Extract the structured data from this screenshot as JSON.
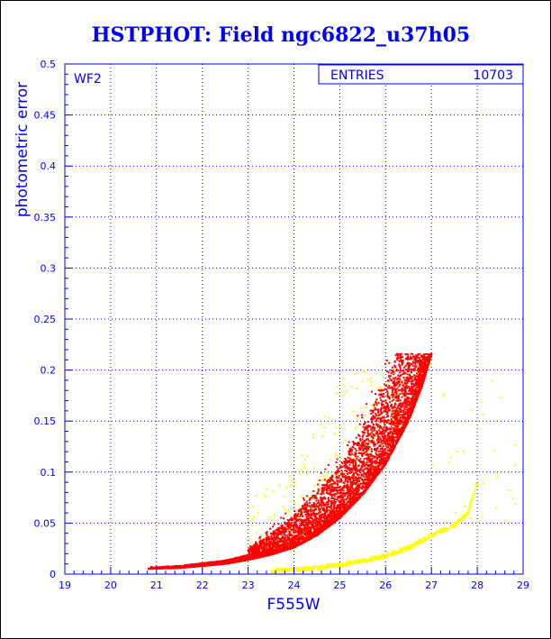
{
  "chart_data": {
    "type": "scatter",
    "title": "HSTPHOT: Field ngc6822_u37h05",
    "xlabel": "F555W",
    "ylabel": "photometric error",
    "panel_label": "WF2",
    "stats_label": "ENTRIES",
    "stats_value": "10703",
    "xlim": [
      19,
      29
    ],
    "ylim": [
      0,
      0.5
    ],
    "xticks": [
      "19",
      "20",
      "21",
      "22",
      "23",
      "24",
      "25",
      "26",
      "27",
      "28",
      "29"
    ],
    "yticks": [
      "0",
      "0.05",
      "0.1",
      "0.15",
      "0.2",
      "0.25",
      "0.3",
      "0.35",
      "0.4",
      "0.45",
      "0.5"
    ],
    "grid": true,
    "series": [
      {
        "color": "#ff0000",
        "description_points": [
          [
            20.8,
            0.005
          ],
          [
            21.5,
            0.006
          ],
          [
            22.0,
            0.008
          ],
          [
            22.5,
            0.01
          ],
          [
            23.0,
            0.014
          ],
          [
            23.5,
            0.019
          ],
          [
            24.0,
            0.026
          ],
          [
            24.5,
            0.038
          ],
          [
            25.0,
            0.055
          ],
          [
            25.5,
            0.078
          ],
          [
            26.0,
            0.108
          ],
          [
            26.5,
            0.15
          ],
          [
            26.8,
            0.185
          ],
          [
            27.0,
            0.216
          ]
        ],
        "upper_envelope": [
          [
            23.0,
            0.025
          ],
          [
            23.5,
            0.04
          ],
          [
            24.0,
            0.058
          ],
          [
            24.5,
            0.082
          ],
          [
            25.0,
            0.105
          ],
          [
            25.5,
            0.145
          ],
          [
            26.0,
            0.19
          ],
          [
            26.2,
            0.216
          ]
        ],
        "cap": 0.216
      },
      {
        "color": "#ffff00",
        "description_points": [
          [
            23.5,
            0.003
          ],
          [
            24.5,
            0.006
          ],
          [
            25.0,
            0.009
          ],
          [
            25.5,
            0.013
          ],
          [
            26.0,
            0.018
          ],
          [
            26.5,
            0.026
          ],
          [
            27.0,
            0.038
          ],
          [
            27.5,
            0.048
          ],
          [
            27.8,
            0.06
          ],
          [
            28.0,
            0.09
          ]
        ],
        "scatter_region": {
          "x": [
            23.0,
            27.0
          ],
          "y": [
            0.02,
            0.2
          ]
        }
      }
    ]
  }
}
